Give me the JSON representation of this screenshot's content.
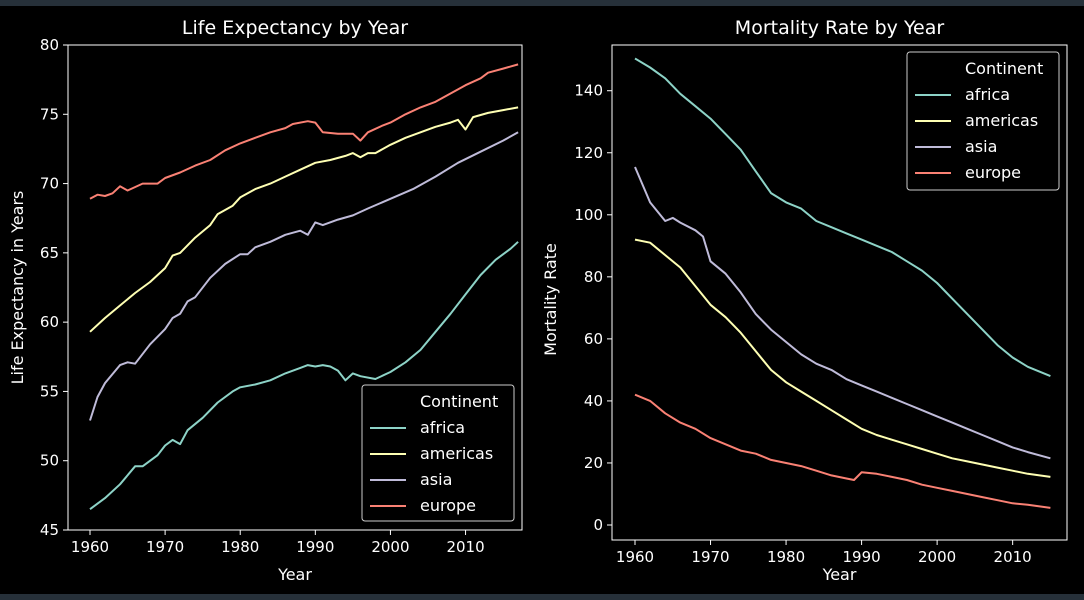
{
  "colors": {
    "background": "#000000",
    "axis": "#ffffff",
    "africa": "#8dd3c7",
    "americas": "#feffb3",
    "asia": "#bfbbd9",
    "europe": "#fa8174"
  },
  "chart_data": [
    {
      "type": "line",
      "title": "Life Expectancy by Year",
      "xlabel": "Year",
      "ylabel": "Life Expectancy in Years",
      "xlim": [
        1960,
        2017
      ],
      "ylim": [
        45,
        80
      ],
      "xticks": [
        "1960",
        "1970",
        "1980",
        "1990",
        "2000",
        "2010"
      ],
      "yticks": [
        "45",
        "50",
        "55",
        "60",
        "65",
        "70",
        "75",
        "80"
      ],
      "legend": {
        "title": "Continent",
        "placement": "lower-right"
      },
      "series": [
        {
          "name": "africa",
          "points": [
            [
              1960,
              46.5
            ],
            [
              1962,
              47.3
            ],
            [
              1964,
              48.3
            ],
            [
              1966,
              49.6
            ],
            [
              1967,
              49.6
            ],
            [
              1969,
              50.4
            ],
            [
              1970,
              51.1
            ],
            [
              1971,
              51.5
            ],
            [
              1972,
              51.2
            ],
            [
              1973,
              52.2
            ],
            [
              1975,
              53.1
            ],
            [
              1977,
              54.2
            ],
            [
              1979,
              55.0
            ],
            [
              1980,
              55.3
            ],
            [
              1982,
              55.5
            ],
            [
              1984,
              55.8
            ],
            [
              1986,
              56.3
            ],
            [
              1988,
              56.7
            ],
            [
              1989,
              56.9
            ],
            [
              1990,
              56.8
            ],
            [
              1991,
              56.9
            ],
            [
              1992,
              56.8
            ],
            [
              1993,
              56.5
            ],
            [
              1994,
              55.8
            ],
            [
              1995,
              56.3
            ],
            [
              1996,
              56.1
            ],
            [
              1998,
              55.9
            ],
            [
              2000,
              56.4
            ],
            [
              2002,
              57.1
            ],
            [
              2004,
              58.0
            ],
            [
              2006,
              59.3
            ],
            [
              2008,
              60.6
            ],
            [
              2010,
              62.0
            ],
            [
              2012,
              63.4
            ],
            [
              2014,
              64.5
            ],
            [
              2016,
              65.3
            ],
            [
              2017,
              65.8
            ]
          ]
        },
        {
          "name": "americas",
          "points": [
            [
              1960,
              59.3
            ],
            [
              1962,
              60.3
            ],
            [
              1964,
              61.2
            ],
            [
              1966,
              62.1
            ],
            [
              1968,
              62.9
            ],
            [
              1970,
              63.9
            ],
            [
              1971,
              64.8
            ],
            [
              1972,
              65.0
            ],
            [
              1974,
              66.1
            ],
            [
              1976,
              67.0
            ],
            [
              1977,
              67.8
            ],
            [
              1979,
              68.4
            ],
            [
              1980,
              69.0
            ],
            [
              1982,
              69.6
            ],
            [
              1984,
              70.0
            ],
            [
              1986,
              70.5
            ],
            [
              1988,
              71.0
            ],
            [
              1990,
              71.5
            ],
            [
              1992,
              71.7
            ],
            [
              1994,
              72.0
            ],
            [
              1995,
              72.2
            ],
            [
              1996,
              71.9
            ],
            [
              1997,
              72.2
            ],
            [
              1998,
              72.2
            ],
            [
              2000,
              72.8
            ],
            [
              2002,
              73.3
            ],
            [
              2004,
              73.7
            ],
            [
              2006,
              74.1
            ],
            [
              2008,
              74.4
            ],
            [
              2009,
              74.6
            ],
            [
              2010,
              73.9
            ],
            [
              2011,
              74.8
            ],
            [
              2013,
              75.1
            ],
            [
              2015,
              75.3
            ],
            [
              2017,
              75.5
            ]
          ]
        },
        {
          "name": "asia",
          "points": [
            [
              1960,
              52.9
            ],
            [
              1961,
              54.6
            ],
            [
              1962,
              55.6
            ],
            [
              1964,
              56.9
            ],
            [
              1965,
              57.1
            ],
            [
              1966,
              57.0
            ],
            [
              1968,
              58.4
            ],
            [
              1970,
              59.5
            ],
            [
              1971,
              60.3
            ],
            [
              1972,
              60.6
            ],
            [
              1973,
              61.5
            ],
            [
              1974,
              61.8
            ],
            [
              1976,
              63.2
            ],
            [
              1978,
              64.2
            ],
            [
              1980,
              64.9
            ],
            [
              1981,
              64.9
            ],
            [
              1982,
              65.4
            ],
            [
              1984,
              65.8
            ],
            [
              1986,
              66.3
            ],
            [
              1988,
              66.6
            ],
            [
              1989,
              66.3
            ],
            [
              1990,
              67.2
            ],
            [
              1991,
              67.0
            ],
            [
              1993,
              67.4
            ],
            [
              1995,
              67.7
            ],
            [
              1997,
              68.2
            ],
            [
              2000,
              68.9
            ],
            [
              2003,
              69.6
            ],
            [
              2006,
              70.5
            ],
            [
              2009,
              71.5
            ],
            [
              2012,
              72.3
            ],
            [
              2015,
              73.1
            ],
            [
              2017,
              73.7
            ]
          ]
        },
        {
          "name": "europe",
          "points": [
            [
              1960,
              68.9
            ],
            [
              1961,
              69.2
            ],
            [
              1962,
              69.1
            ],
            [
              1963,
              69.3
            ],
            [
              1964,
              69.8
            ],
            [
              1965,
              69.5
            ],
            [
              1967,
              70.0
            ],
            [
              1968,
              70.0
            ],
            [
              1969,
              70.0
            ],
            [
              1970,
              70.4
            ],
            [
              1972,
              70.8
            ],
            [
              1974,
              71.3
            ],
            [
              1976,
              71.7
            ],
            [
              1978,
              72.4
            ],
            [
              1980,
              72.9
            ],
            [
              1982,
              73.3
            ],
            [
              1984,
              73.7
            ],
            [
              1986,
              74.0
            ],
            [
              1987,
              74.3
            ],
            [
              1989,
              74.5
            ],
            [
              1990,
              74.4
            ],
            [
              1991,
              73.7
            ],
            [
              1993,
              73.6
            ],
            [
              1995,
              73.6
            ],
            [
              1996,
              73.1
            ],
            [
              1997,
              73.7
            ],
            [
              1999,
              74.2
            ],
            [
              2000,
              74.4
            ],
            [
              2002,
              75.0
            ],
            [
              2004,
              75.5
            ],
            [
              2006,
              75.9
            ],
            [
              2008,
              76.5
            ],
            [
              2010,
              77.1
            ],
            [
              2012,
              77.6
            ],
            [
              2013,
              78.0
            ],
            [
              2015,
              78.3
            ],
            [
              2017,
              78.6
            ]
          ]
        }
      ]
    },
    {
      "type": "line",
      "title": "Mortality Rate by Year",
      "xlabel": "Year",
      "ylabel": "Mortality Rate",
      "xlim": [
        1960,
        2015
      ],
      "ylim": [
        0,
        150
      ],
      "xticks": [
        "1960",
        "1970",
        "1980",
        "1990",
        "2000",
        "2010"
      ],
      "yticks": [
        "0",
        "20",
        "40",
        "60",
        "80",
        "100",
        "120",
        "140"
      ],
      "legend": {
        "title": "Continent",
        "placement": "upper-right"
      },
      "series": [
        {
          "name": "africa",
          "points": [
            [
              1960,
              150.4
            ],
            [
              1962,
              147.5
            ],
            [
              1964,
              144.0
            ],
            [
              1966,
              139.0
            ],
            [
              1968,
              135.0
            ],
            [
              1970,
              131.0
            ],
            [
              1972,
              126.0
            ],
            [
              1974,
              121.0
            ],
            [
              1976,
              114.0
            ],
            [
              1978,
              107.0
            ],
            [
              1980,
              104.0
            ],
            [
              1982,
              102.0
            ],
            [
              1984,
              98.0
            ],
            [
              1986,
              96.0
            ],
            [
              1988,
              94.0
            ],
            [
              1990,
              92.0
            ],
            [
              1992,
              90.0
            ],
            [
              1994,
              88.0
            ],
            [
              1996,
              85.0
            ],
            [
              1998,
              82.0
            ],
            [
              2000,
              78.0
            ],
            [
              2002,
              73.0
            ],
            [
              2004,
              68.0
            ],
            [
              2006,
              63.0
            ],
            [
              2008,
              58.0
            ],
            [
              2010,
              54.0
            ],
            [
              2012,
              51.0
            ],
            [
              2015,
              48.0
            ]
          ]
        },
        {
          "name": "americas",
          "points": [
            [
              1960,
              92.0
            ],
            [
              1962,
              91.0
            ],
            [
              1964,
              87.0
            ],
            [
              1966,
              83.0
            ],
            [
              1968,
              77.0
            ],
            [
              1970,
              71.0
            ],
            [
              1972,
              67.0
            ],
            [
              1974,
              62.0
            ],
            [
              1976,
              56.0
            ],
            [
              1978,
              50.0
            ],
            [
              1980,
              46.0
            ],
            [
              1982,
              43.0
            ],
            [
              1984,
              40.0
            ],
            [
              1986,
              37.0
            ],
            [
              1988,
              34.0
            ],
            [
              1990,
              31.0
            ],
            [
              1992,
              29.0
            ],
            [
              1994,
              27.5
            ],
            [
              1996,
              26.0
            ],
            [
              1998,
              24.5
            ],
            [
              2000,
              23.0
            ],
            [
              2002,
              21.5
            ],
            [
              2004,
              20.5
            ],
            [
              2006,
              19.5
            ],
            [
              2008,
              18.5
            ],
            [
              2010,
              17.5
            ],
            [
              2012,
              16.5
            ],
            [
              2015,
              15.5
            ]
          ]
        },
        {
          "name": "asia",
          "points": [
            [
              1960,
              115.4
            ],
            [
              1962,
              104.0
            ],
            [
              1964,
              98.0
            ],
            [
              1965,
              99.0
            ],
            [
              1966,
              97.5
            ],
            [
              1968,
              95.0
            ],
            [
              1969,
              93.0
            ],
            [
              1970,
              85.0
            ],
            [
              1972,
              81.0
            ],
            [
              1974,
              75.0
            ],
            [
              1976,
              68.0
            ],
            [
              1978,
              63.0
            ],
            [
              1980,
              59.0
            ],
            [
              1982,
              55.0
            ],
            [
              1984,
              52.0
            ],
            [
              1986,
              50.0
            ],
            [
              1988,
              47.0
            ],
            [
              1990,
              45.0
            ],
            [
              1992,
              43.0
            ],
            [
              1994,
              41.0
            ],
            [
              1996,
              39.0
            ],
            [
              1998,
              37.0
            ],
            [
              2000,
              35.0
            ],
            [
              2002,
              33.0
            ],
            [
              2004,
              31.0
            ],
            [
              2006,
              29.0
            ],
            [
              2008,
              27.0
            ],
            [
              2010,
              25.0
            ],
            [
              2012,
              23.5
            ],
            [
              2015,
              21.5
            ]
          ]
        },
        {
          "name": "europe",
          "points": [
            [
              1960,
              42.0
            ],
            [
              1962,
              40.0
            ],
            [
              1964,
              36.0
            ],
            [
              1966,
              33.0
            ],
            [
              1968,
              31.0
            ],
            [
              1970,
              28.0
            ],
            [
              1972,
              26.0
            ],
            [
              1974,
              24.0
            ],
            [
              1976,
              23.0
            ],
            [
              1978,
              21.0
            ],
            [
              1980,
              20.0
            ],
            [
              1982,
              19.0
            ],
            [
              1984,
              17.5
            ],
            [
              1986,
              16.0
            ],
            [
              1988,
              15.0
            ],
            [
              1989,
              14.5
            ],
            [
              1990,
              17.0
            ],
            [
              1992,
              16.5
            ],
            [
              1994,
              15.5
            ],
            [
              1996,
              14.5
            ],
            [
              1998,
              13.0
            ],
            [
              2000,
              12.0
            ],
            [
              2002,
              11.0
            ],
            [
              2004,
              10.0
            ],
            [
              2006,
              9.0
            ],
            [
              2008,
              8.0
            ],
            [
              2010,
              7.0
            ],
            [
              2012,
              6.5
            ],
            [
              2015,
              5.5
            ]
          ]
        }
      ]
    }
  ]
}
